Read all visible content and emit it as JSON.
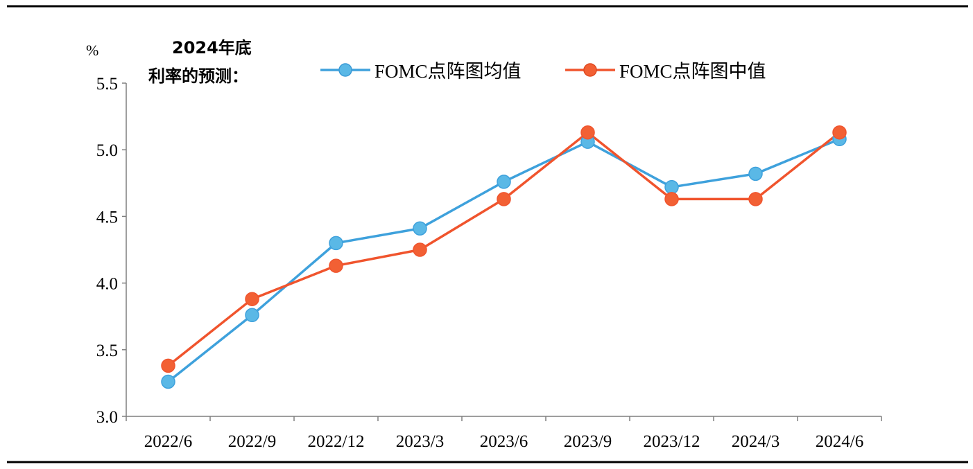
{
  "chart_data": {
    "type": "line",
    "title_lines": [
      "2024年底",
      "利率的预测："
    ],
    "ylabel": "%",
    "xlabel": "",
    "categories": [
      "2022/6",
      "2022/9",
      "2022/12",
      "2023/3",
      "2023/6",
      "2023/9",
      "2023/12",
      "2024/3",
      "2024/6"
    ],
    "ylim": [
      3.0,
      5.5
    ],
    "yticks": [
      3.0,
      3.5,
      4.0,
      4.5,
      5.0,
      5.5
    ],
    "ytick_labels": [
      "3.0",
      "3.5",
      "4.0",
      "4.5",
      "5.0",
      "5.5"
    ],
    "grid": false,
    "legend_position": "top",
    "series": [
      {
        "name": "FOMC点阵图均值",
        "color": "#3ea1dc",
        "marker_fill": "#5ab8e6",
        "values": [
          3.26,
          3.76,
          4.3,
          4.41,
          4.76,
          5.06,
          4.72,
          4.82,
          5.08
        ]
      },
      {
        "name": "FOMC点阵图中值",
        "color": "#f0542d",
        "marker_fill": "#f26034",
        "values": [
          3.38,
          3.88,
          4.13,
          4.25,
          4.63,
          5.13,
          4.63,
          4.63,
          5.13
        ]
      }
    ]
  }
}
